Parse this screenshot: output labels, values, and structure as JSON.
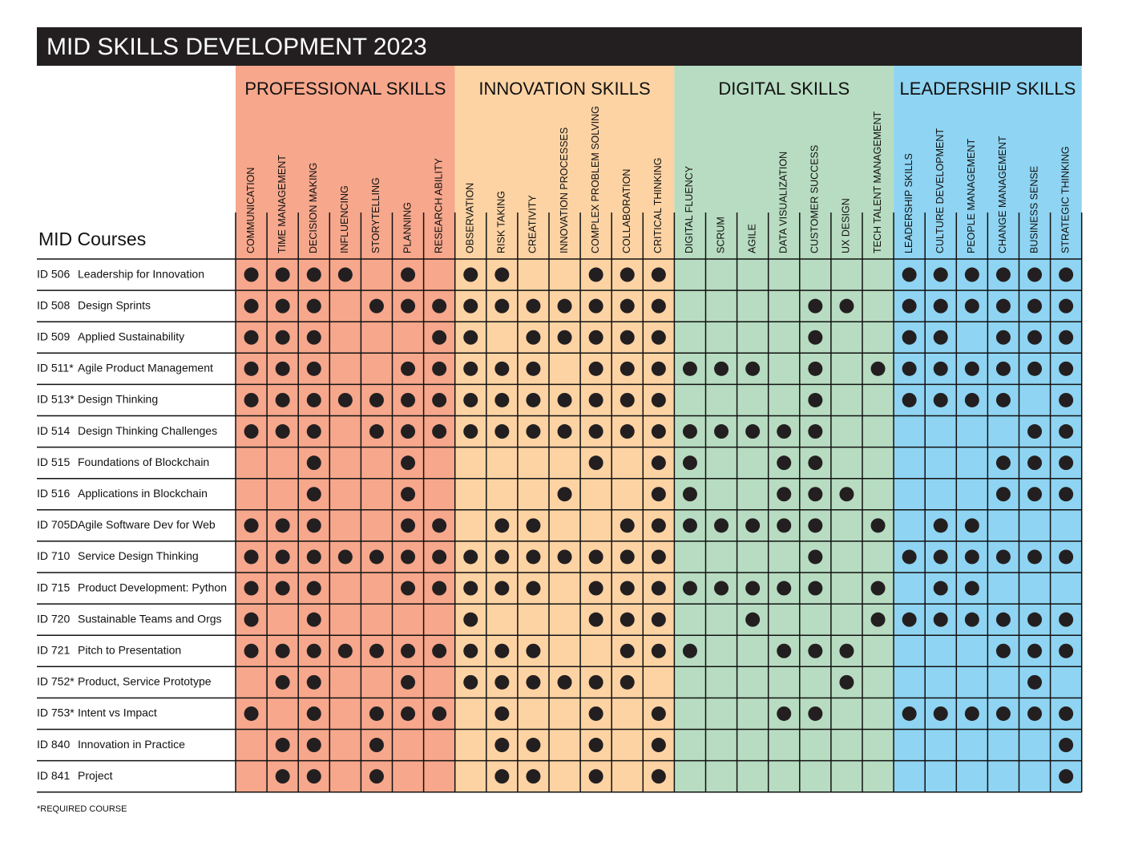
{
  "title": "MID SKILLS DEVELOPMENT 2023",
  "courses_label": "MID Courses",
  "footnote": "*REQUIRED COURSE",
  "groups": [
    {
      "name": "PROFESSIONAL SKILLS",
      "color": "#f6a78c",
      "skills": [
        "COMMUNICATION",
        "TIME MANAGEMENT",
        "DECISION MAKING",
        "INFLUENCING",
        "STORYTELLING",
        "PLANNING",
        "RESEARCH ABILITY"
      ]
    },
    {
      "name": "INNOVATION SKILLS",
      "color": "#fdd3a4",
      "skills": [
        "OBSERVATION",
        "RISK TAKING",
        "CREATIVITY",
        "INNOVATION PROCESSES",
        "COMPLEX PROBLEM SOLVING",
        "COLLABORATION",
        "CRITICAL THINKING"
      ]
    },
    {
      "name": "DIGITAL SKILLS",
      "color": "#b7dcc1",
      "skills": [
        "DIGITAL FLUENCY",
        "SCRUM",
        "AGILE",
        "DATA VISUALIZATION",
        "CUSTOMER SUCCESS",
        "UX DESIGN",
        "TECH TALENT MANAGEMENT"
      ]
    },
    {
      "name": "LEADERSHIP SKILLS",
      "color": "#8fd4f2",
      "skills": [
        "LEADERSHIP SKILLS",
        "CULTURE DEVELOPMENT",
        "PEOPLE MANAGEMENT",
        "CHANGE MANAGEMENT",
        "BUSINESS SENSE",
        "STRATEGIC THINKING"
      ]
    }
  ],
  "rows": [
    {
      "code": "ID 506",
      "name": "Leadership for Innovation",
      "marks": [
        1,
        1,
        1,
        1,
        0,
        1,
        0,
        1,
        1,
        0,
        0,
        1,
        1,
        1,
        0,
        0,
        0,
        0,
        0,
        0,
        0,
        1,
        1,
        1,
        1,
        1,
        1
      ]
    },
    {
      "code": "ID 508",
      "name": "Design Sprints",
      "marks": [
        1,
        1,
        1,
        0,
        1,
        1,
        1,
        1,
        1,
        1,
        1,
        1,
        1,
        1,
        0,
        0,
        0,
        0,
        1,
        1,
        0,
        1,
        1,
        1,
        1,
        1,
        1
      ]
    },
    {
      "code": "ID 509",
      "name": "Applied Sustainability",
      "marks": [
        1,
        1,
        1,
        0,
        0,
        0,
        1,
        1,
        0,
        1,
        1,
        1,
        1,
        1,
        0,
        0,
        0,
        0,
        1,
        0,
        0,
        1,
        1,
        0,
        1,
        1,
        1
      ]
    },
    {
      "code": "ID 511*",
      "name": "Agile Product Management",
      "marks": [
        1,
        1,
        1,
        0,
        0,
        1,
        1,
        1,
        1,
        1,
        0,
        1,
        1,
        1,
        1,
        1,
        1,
        0,
        1,
        0,
        1,
        1,
        1,
        1,
        1,
        1,
        1
      ]
    },
    {
      "code": "ID 513*",
      "name": "Design Thinking",
      "marks": [
        1,
        1,
        1,
        1,
        1,
        1,
        1,
        1,
        1,
        1,
        1,
        1,
        1,
        1,
        0,
        0,
        0,
        0,
        1,
        0,
        0,
        1,
        1,
        1,
        1,
        0,
        1
      ]
    },
    {
      "code": "ID 514",
      "name": "Design Thinking Challenges",
      "marks": [
        1,
        1,
        1,
        0,
        1,
        1,
        1,
        1,
        1,
        1,
        1,
        1,
        1,
        1,
        1,
        1,
        1,
        1,
        1,
        0,
        0,
        0,
        0,
        0,
        0,
        1,
        1
      ]
    },
    {
      "code": "ID 515",
      "name": "Foundations of Blockchain",
      "marks": [
        0,
        0,
        1,
        0,
        0,
        1,
        0,
        0,
        0,
        0,
        0,
        1,
        0,
        1,
        1,
        0,
        0,
        1,
        1,
        0,
        0,
        0,
        0,
        0,
        1,
        1,
        1
      ]
    },
    {
      "code": "ID 516",
      "name": "Applications in Blockchain",
      "marks": [
        0,
        0,
        1,
        0,
        0,
        1,
        0,
        0,
        0,
        0,
        1,
        0,
        0,
        1,
        1,
        0,
        0,
        1,
        1,
        1,
        0,
        0,
        0,
        0,
        1,
        1,
        1
      ]
    },
    {
      "code": "ID 705D",
      "name": "Agile Software Dev for Web",
      "marks": [
        1,
        1,
        1,
        0,
        0,
        1,
        1,
        0,
        1,
        1,
        0,
        0,
        1,
        1,
        1,
        1,
        1,
        1,
        1,
        0,
        1,
        0,
        1,
        1,
        0,
        0,
        0
      ]
    },
    {
      "code": "ID 710",
      "name": "Service Design Thinking",
      "marks": [
        1,
        1,
        1,
        1,
        1,
        1,
        1,
        1,
        1,
        1,
        1,
        1,
        1,
        1,
        0,
        0,
        0,
        0,
        1,
        0,
        0,
        1,
        1,
        1,
        1,
        1,
        1
      ]
    },
    {
      "code": "ID 715",
      "name": "Product Development: Python",
      "marks": [
        1,
        1,
        1,
        0,
        0,
        1,
        1,
        1,
        1,
        1,
        0,
        1,
        1,
        1,
        1,
        1,
        1,
        1,
        1,
        0,
        1,
        0,
        1,
        1,
        0,
        0,
        0
      ]
    },
    {
      "code": "ID 720",
      "name": "Sustainable Teams and Orgs",
      "marks": [
        1,
        0,
        1,
        0,
        0,
        0,
        0,
        1,
        0,
        0,
        0,
        1,
        1,
        1,
        0,
        0,
        1,
        0,
        0,
        0,
        1,
        1,
        1,
        1,
        1,
        1,
        1
      ]
    },
    {
      "code": "ID 721",
      "name": "Pitch to Presentation",
      "marks": [
        1,
        1,
        1,
        1,
        1,
        1,
        1,
        1,
        1,
        1,
        0,
        0,
        1,
        1,
        1,
        0,
        0,
        1,
        1,
        1,
        0,
        0,
        0,
        0,
        1,
        1,
        1
      ]
    },
    {
      "code": "ID 752*",
      "name": "Product, Service Prototype",
      "marks": [
        0,
        1,
        1,
        0,
        0,
        1,
        0,
        1,
        1,
        1,
        1,
        1,
        1,
        0,
        0,
        0,
        0,
        0,
        0,
        1,
        0,
        0,
        0,
        0,
        0,
        1,
        0
      ]
    },
    {
      "code": "ID 753*",
      "name": "Intent vs Impact",
      "marks": [
        1,
        0,
        1,
        0,
        1,
        1,
        1,
        0,
        1,
        0,
        0,
        1,
        0,
        1,
        0,
        0,
        0,
        1,
        1,
        0,
        0,
        1,
        1,
        1,
        1,
        1,
        1
      ]
    },
    {
      "code": "ID 840",
      "name": "Innovation in Practice",
      "marks": [
        0,
        1,
        1,
        0,
        1,
        0,
        0,
        0,
        1,
        1,
        0,
        1,
        0,
        1,
        0,
        0,
        0,
        0,
        0,
        0,
        0,
        0,
        0,
        0,
        0,
        0,
        1
      ]
    },
    {
      "code": "ID 841",
      "name": "Project",
      "marks": [
        0,
        1,
        1,
        0,
        1,
        0,
        0,
        0,
        1,
        1,
        0,
        1,
        0,
        1,
        0,
        0,
        0,
        0,
        0,
        0,
        0,
        0,
        0,
        0,
        0,
        0,
        1
      ]
    }
  ]
}
